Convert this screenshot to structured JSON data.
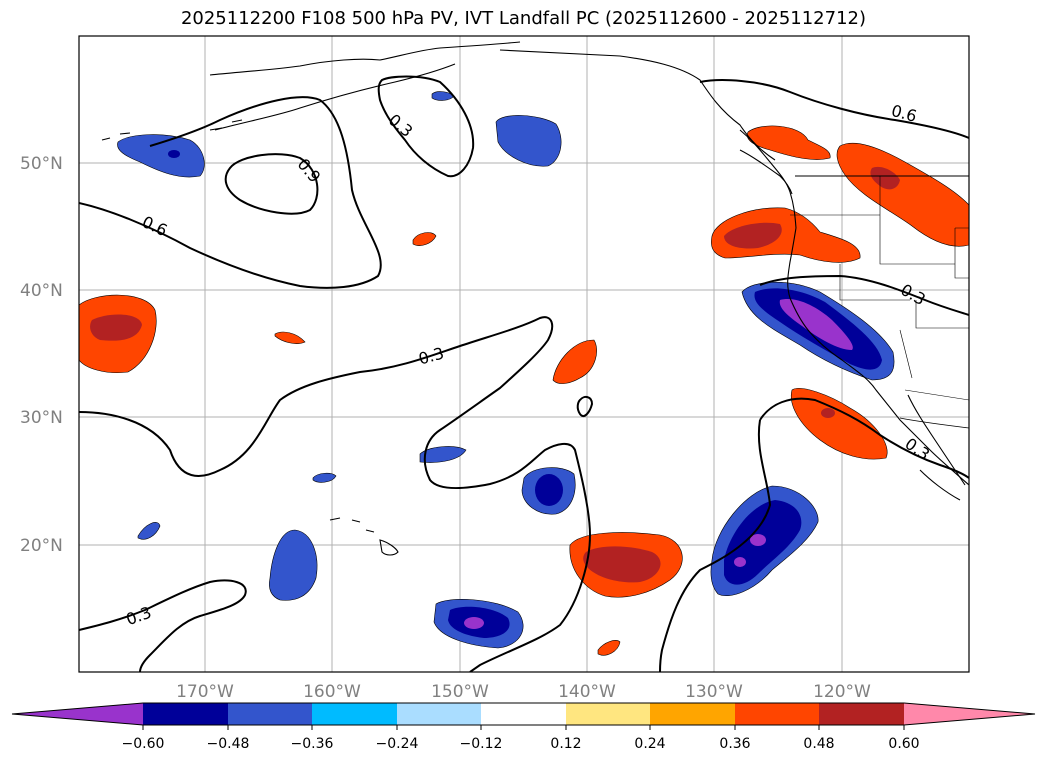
{
  "title": "2025112200 F108 500 hPa PV, IVT Landfall PC (2025112600 - 2025112712)",
  "axes": {
    "x_ticks": [
      "170°W",
      "160°W",
      "150°W",
      "140°W",
      "130°W",
      "120°W"
    ],
    "y_ticks": [
      "50°N",
      "40°N",
      "30°N",
      "20°N"
    ]
  },
  "contour_labels": [
    "0.3",
    "0.9",
    "0.6",
    "0.3",
    "0.3",
    "0.6",
    "0.3",
    "0.3"
  ],
  "colorbar": {
    "colors": [
      "#9933cc",
      "#000099",
      "#3355cc",
      "#00bbff",
      "#aaddff",
      "#ffffff",
      "#ffe680",
      "#ffa500",
      "#ff4500",
      "#b22222",
      "#ff88aa"
    ],
    "tick_labels": [
      "−0.60",
      "−0.48",
      "−0.36",
      "−0.24",
      "−0.12",
      "0.12",
      "0.24",
      "0.36",
      "0.48",
      "0.60"
    ]
  }
}
